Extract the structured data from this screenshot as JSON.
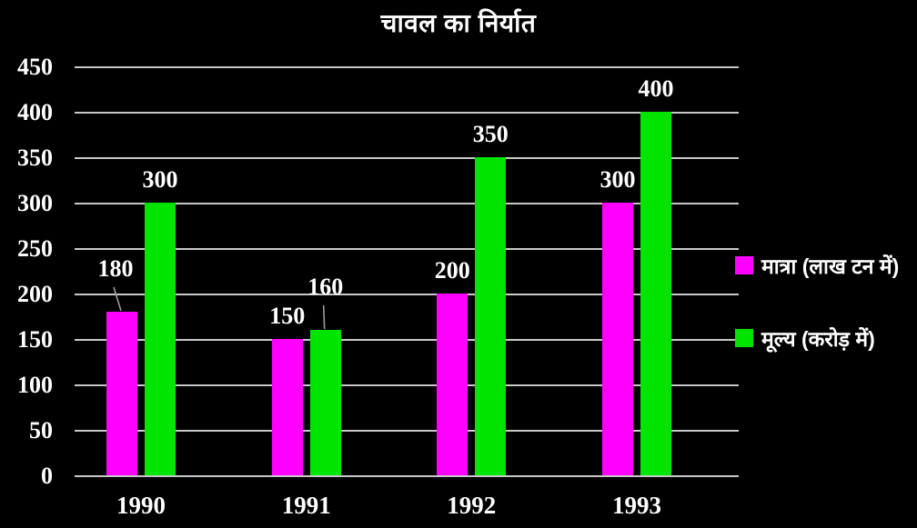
{
  "chart_data": {
    "type": "bar",
    "title": "चावल का निर्यात",
    "categories": [
      "1990",
      "1991",
      "1992",
      "1993"
    ],
    "series": [
      {
        "name": "मात्रा (लाख टन में)",
        "color": "#ff00ff",
        "values": [
          180,
          150,
          200,
          300
        ]
      },
      {
        "name": "मूल्य (करोड़ में)",
        "color": "#00e400",
        "values": [
          300,
          160,
          350,
          400
        ]
      }
    ],
    "yticks": [
      0,
      50,
      100,
      150,
      200,
      250,
      300,
      350,
      400,
      450
    ],
    "ylim": [
      0,
      450
    ],
    "xlabel": "",
    "ylabel": "",
    "grid": true,
    "legend_position": "right",
    "background_color": "#000000",
    "text_color": "#ffffff",
    "gridline_color": "#c8c8c8",
    "value_labels_shown": true,
    "callouts": [
      {
        "category_index": 0,
        "series_index": 0,
        "value": 180
      },
      {
        "category_index": 1,
        "series_index": 1,
        "value": 160
      }
    ]
  }
}
